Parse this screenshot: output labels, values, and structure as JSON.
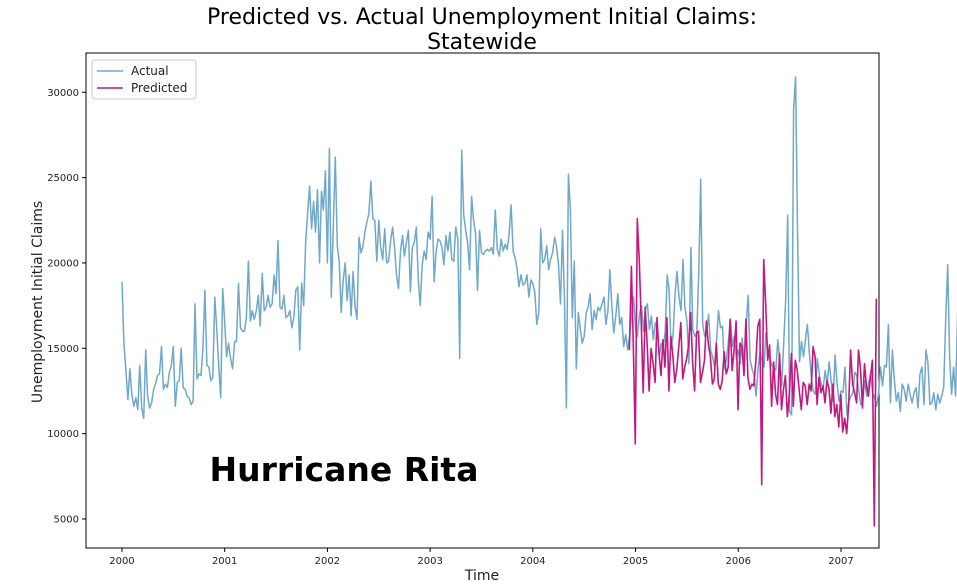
{
  "chart_data": {
    "type": "line",
    "title_line1": "Predicted vs. Actual Unemployment Initial Claims:",
    "title_line2": "Statewide",
    "xlabel": "Time",
    "ylabel": "Unemployment Initial Claims",
    "xlim": [
      1999.65,
      2007.37
    ],
    "ylim": [
      3300,
      32300
    ],
    "x_ticks": [
      2000,
      2001,
      2002,
      2003,
      2004,
      2005,
      2006,
      2007
    ],
    "x_tick_labels": [
      "2000",
      "2001",
      "2002",
      "2003",
      "2004",
      "2005",
      "2006",
      "2007"
    ],
    "y_ticks": [
      5000,
      10000,
      15000,
      20000,
      25000,
      30000
    ],
    "y_tick_labels": [
      "5000",
      "10000",
      "15000",
      "20000",
      "25000",
      "30000"
    ],
    "legend": {
      "position": "top-left",
      "entries": [
        "Actual",
        "Predicted"
      ]
    },
    "grid": false,
    "annotation": "Hurricane Rita",
    "series": [
      {
        "name": "Actual",
        "color": "#6fa8c8",
        "start": 2000.0,
        "step": 0.019231,
        "values": [
          18900,
          15300,
          13700,
          12000,
          13800,
          12300,
          11600,
          12100,
          11400,
          14000,
          11500,
          10900,
          14900,
          12200,
          11500,
          11800,
          12600,
          12900,
          13400,
          13500,
          15100,
          12600,
          12900,
          12700,
          13600,
          14000,
          15100,
          11600,
          13000,
          13100,
          15000,
          12700,
          12600,
          12200,
          12100,
          11700,
          11900,
          17600,
          13200,
          13500,
          13400,
          15000,
          18400,
          14000,
          13900,
          13100,
          13300,
          18000,
          16100,
          14000,
          12100,
          18500,
          16500,
          14500,
          15300,
          14400,
          13800,
          15400,
          15400,
          18800,
          16200,
          16000,
          16000,
          16800,
          20100,
          16600,
          17200,
          16700,
          17200,
          18100,
          16300,
          19400,
          17200,
          17400,
          18100,
          17400,
          17600,
          19300,
          18200,
          21300,
          17400,
          17300,
          18100,
          16800,
          16900,
          17200,
          16200,
          16800,
          18400,
          18600,
          14900,
          18800,
          17500,
          21300,
          22900,
          24500,
          22000,
          23600,
          21800,
          24300,
          20000,
          24200,
          23100,
          25400,
          20000,
          26700,
          18000,
          22200,
          26200,
          21000,
          20100,
          17100,
          19000,
          20000,
          17800,
          19300,
          16900,
          19500,
          17400,
          16700,
          21500,
          20600,
          21000,
          21800,
          22400,
          22900,
          24800,
          22600,
          22500,
          20100,
          22500,
          20900,
          20200,
          22000,
          20000,
          20100,
          21300,
          22100,
          20900,
          19300,
          18500,
          20700,
          21600,
          20400,
          21200,
          21900,
          18300,
          20900,
          21200,
          22100,
          19000,
          17500,
          19900,
          20700,
          20200,
          21800,
          21400,
          23900,
          18900,
          20600,
          21400,
          21300,
          20900,
          19900,
          21600,
          20700,
          21800,
          20200,
          20100,
          22100,
          21400,
          14400,
          26600,
          22800,
          21900,
          21200,
          19600,
          23900,
          22500,
          21700,
          18400,
          21900,
          20600,
          20500,
          20700,
          20800,
          20700,
          20900,
          20500,
          23100,
          20800,
          20400,
          21400,
          20700,
          21100,
          20800,
          21700,
          23400,
          20700,
          20300,
          19700,
          18600,
          19300,
          18700,
          18800,
          19300,
          18000,
          19000,
          18800,
          18300,
          16400,
          17100,
          22000,
          20000,
          20200,
          21000,
          19600,
          20200,
          20600,
          21500,
          21000,
          19900,
          17600,
          21900,
          18000,
          11500,
          25200,
          23100,
          16800,
          20100,
          13800,
          17100,
          16200,
          15300,
          15700,
          17100,
          17400,
          18200,
          16100,
          17200,
          16700,
          17400,
          17200,
          17600,
          18000,
          16400,
          17200,
          19600,
          17400,
          15900,
          16900,
          18200,
          16400,
          16800,
          15100,
          15800,
          14900,
          15700,
          17000,
          18000,
          16000,
          15700,
          17000,
          17500,
          16000,
          17300,
          17600,
          16100,
          16900,
          15500,
          16500,
          16200,
          14500,
          15300,
          15000,
          16000,
          19300,
          18400,
          15000,
          15800,
          18200,
          19500,
          18000,
          17200,
          20200,
          17400,
          16600,
          14100,
          20900,
          16100,
          15700,
          15900,
          19500,
          24900,
          16400,
          15700,
          15900,
          17000,
          14900,
          14500,
          13900,
          15500,
          17200,
          16200,
          16300,
          13800,
          14300,
          15400,
          16700,
          15100,
          15700,
          14400,
          14900,
          14100,
          15600,
          14100,
          16400,
          18100,
          14300,
          13800,
          13400,
          12200,
          13800,
          14800,
          14300,
          13900,
          15900,
          14600,
          14400,
          14000,
          13900,
          13700,
          15500,
          14300,
          12800,
          15300,
          17900,
          22800,
          11300,
          11100,
          29000,
          30900,
          22000,
          14200,
          15400,
          14500,
          15500,
          16400,
          14700,
          13300,
          12500,
          12300,
          14400,
          13500,
          12900,
          12700,
          13700,
          12800,
          14200,
          13100,
          11900,
          14600,
          12900,
          11900,
          12500,
          12400,
          13900,
          11100,
          11900,
          12200,
          12400,
          13600,
          13400,
          12500,
          11700,
          11900,
          13100,
          12200,
          13000,
          13500,
          12400,
          12100,
          11600,
          12300,
          13900,
          12800,
          14000,
          13900,
          16400,
          11800,
          14900,
          13200,
          11900,
          12400,
          11300,
          12900,
          12600,
          11900,
          12900,
          12300,
          11800,
          12400,
          12700,
          11500,
          13500,
          13900,
          11700,
          14900,
          14200,
          11700,
          11800,
          12400,
          11400,
          12300,
          11800,
          12200,
          12700,
          16700,
          19900,
          14500,
          12300,
          13900,
          12200,
          17100,
          11400
        ]
      },
      {
        "name": "Predicted",
        "color": "#c2187f",
        "start": 2004.94,
        "step": 0.019231,
        "values": [
          14900,
          19800,
          15200,
          9400,
          22600,
          20100,
          16600,
          12400,
          17400,
          15200,
          12500,
          15000,
          14100,
          13000,
          16800,
          14700,
          13400,
          15500,
          13900,
          16800,
          12500,
          15700,
          14600,
          13000,
          13800,
          15100,
          16500,
          13200,
          13900,
          14400,
          15200,
          17100,
          14200,
          12500,
          15900,
          16000,
          13000,
          13600,
          14300,
          16600,
          15200,
          14500,
          12900,
          13200,
          15300,
          12900,
          12600,
          13100,
          14800,
          13500,
          13900,
          16700,
          13700,
          14900,
          16600,
          11400,
          15300,
          15100,
          13400,
          16700,
          13300,
          12600,
          12900,
          12800,
          14200,
          16300,
          16700,
          7000,
          20200,
          17600,
          14300,
          15200,
          11600,
          14200,
          12300,
          11700,
          14700,
          11400,
          12600,
          13400,
          11000,
          12400,
          14700,
          11600,
          14300,
          13700,
          12500,
          11400,
          13000,
          12800,
          11700,
          12900,
          12500,
          15100,
          14500,
          11700,
          13300,
          12400,
          12800,
          11800,
          13100,
          12700,
          11200,
          12900,
          11000,
          11700,
          10400,
          12300,
          10100,
          10900,
          10000,
          11700,
          14900,
          12900,
          12400,
          11800,
          14900,
          13800,
          11500,
          14100,
          12800,
          12200,
          13300,
          14300,
          4600,
          17900
        ]
      }
    ]
  }
}
